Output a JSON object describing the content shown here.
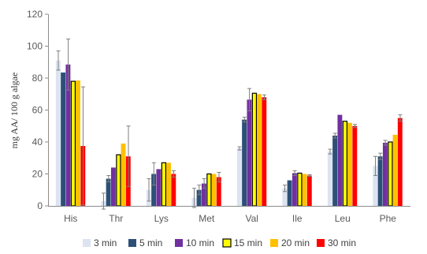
{
  "chart_data": {
    "type": "bar",
    "title": "",
    "xlabel": "",
    "ylabel": "mg AA/ 100 g algae",
    "ylim": [
      0,
      120
    ],
    "yticks": [
      0,
      20,
      40,
      60,
      80,
      100,
      120
    ],
    "grid": false,
    "legend_position": "bottom",
    "categories": [
      "His",
      "Thr",
      "Lys",
      "Met",
      "Val",
      "Ile",
      "Leu",
      "Phe"
    ],
    "series": [
      {
        "name": "3 min",
        "color": "#dce3f1",
        "edge": "#dce3f1",
        "values": [
          91,
          3,
          10,
          5,
          36,
          11,
          34,
          25
        ],
        "errors": [
          6,
          5,
          7,
          6,
          1,
          2,
          1.5,
          6
        ]
      },
      {
        "name": "5 min",
        "color": "#2c5077",
        "edge": "#2c5077",
        "values": [
          83.5,
          17,
          20,
          10,
          54,
          16,
          44,
          31
        ],
        "errors": [
          0,
          2,
          7,
          3,
          1.5,
          0,
          1.5,
          2
        ]
      },
      {
        "name": "10 min",
        "color": "#7030a0",
        "edge": "#7030a0",
        "values": [
          88.5,
          24,
          23,
          14,
          66.5,
          20.5,
          57,
          39.5
        ],
        "errors": [
          16,
          0,
          0,
          3,
          7,
          1.5,
          0,
          1.5
        ]
      },
      {
        "name": "15 min",
        "color": "#ffff00",
        "edge": "#000000",
        "values": [
          78,
          32,
          27,
          20,
          70.5,
          20.5,
          53,
          40
        ],
        "errors": [
          0,
          0,
          0,
          0,
          0,
          0,
          0,
          0
        ]
      },
      {
        "name": "20 min",
        "color": "#ffc000",
        "edge": "#ffc000",
        "values": [
          78.5,
          39,
          27,
          20,
          70,
          20,
          52,
          44.5
        ],
        "errors": [
          0,
          0,
          0,
          0,
          0,
          0,
          0,
          0
        ]
      },
      {
        "name": "30 min",
        "color": "#ff0000",
        "edge": "#ff0000",
        "values": [
          37.5,
          31,
          20,
          18,
          68,
          19,
          50,
          55
        ],
        "errors": [
          37,
          19,
          2,
          3,
          1.5,
          0.5,
          1,
          2
        ]
      }
    ]
  }
}
